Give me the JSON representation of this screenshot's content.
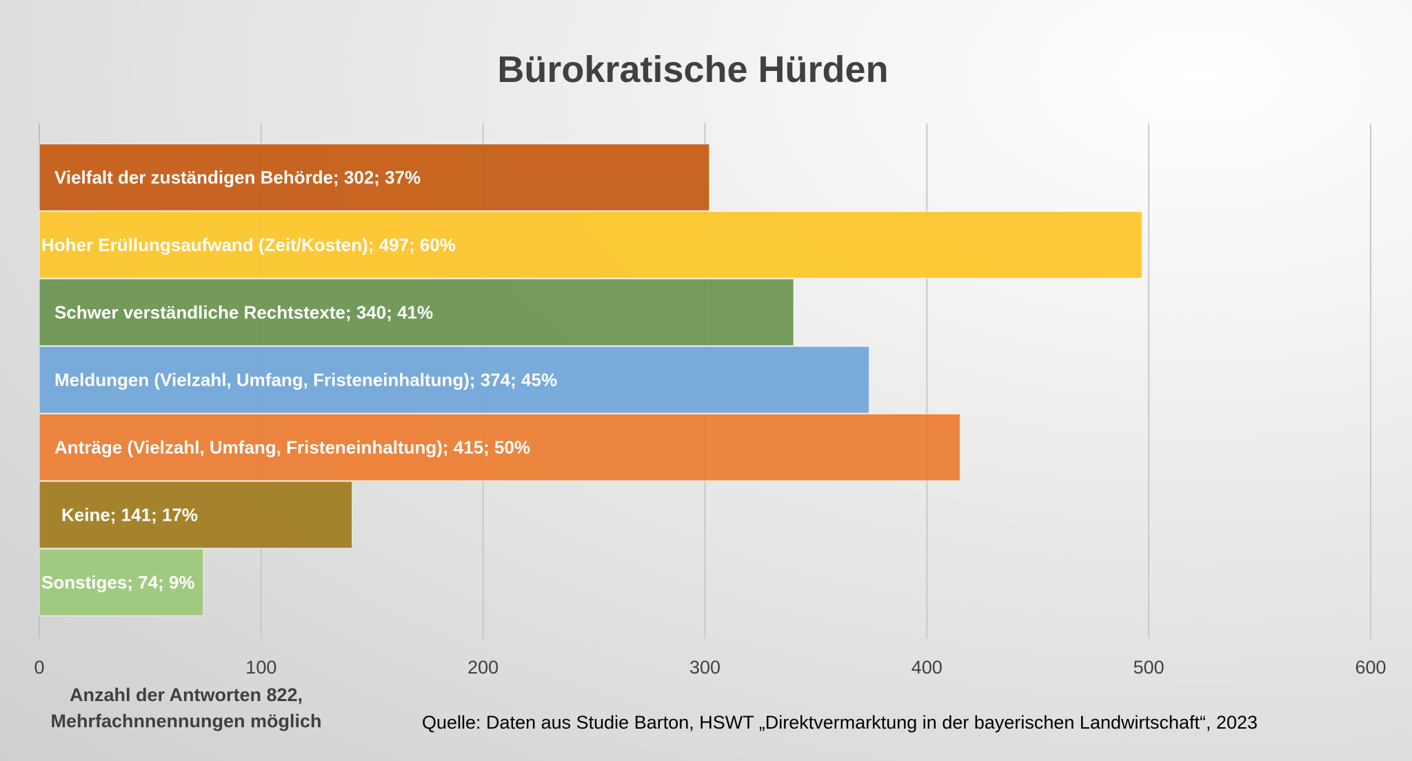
{
  "chart_data": {
    "type": "bar",
    "orientation": "horizontal",
    "title": "Bürokratische Hürden",
    "categories": [
      "Vielfalt der zuständigen Behörde",
      "Hoher Erüllungsaufwand (Zeit/Kosten)",
      "Schwer verständliche Rechtstexte",
      "Meldungen (Vielzahl, Umfang, Fristeneinhaltung)",
      "Anträge (Vielzahl, Umfang, Fristeneinhaltung)",
      "Keine",
      "Sonstiges"
    ],
    "values": [
      302,
      497,
      340,
      374,
      415,
      141,
      74
    ],
    "percents": [
      "37%",
      "60%",
      "41%",
      "45%",
      "50%",
      "17%",
      "9%"
    ],
    "data_labels": [
      "Vielfalt der zuständigen Behörde; 302; 37%",
      "Hoher Erüllungsaufwand (Zeit/Kosten); 497; 60%",
      "Schwer verständliche Rechtstexte; 340; 41%",
      "Meldungen (Vielzahl, Umfang, Fristeneinhaltung); 374; 45%",
      "Anträge (Vielzahl, Umfang, Fristeneinhaltung); 415; 50%",
      "Keine; 141; 17%",
      "Sonstiges; 74; 9%"
    ],
    "colors": [
      "#C55A11",
      "#FEC628",
      "#6A9450",
      "#70A6DA",
      "#ED7D31",
      "#A07C1E",
      "#9DC97A"
    ],
    "xlim": [
      0,
      600
    ],
    "xticks": [
      "0",
      "100",
      "200",
      "300",
      "400",
      "500",
      "600"
    ],
    "xlabel": "Anzahl der Antworten 822, Mehrfachnnennungen möglich",
    "xlabel_lines": [
      "Anzahl der Antworten 822,",
      "Mehrfachnnennungen möglich"
    ],
    "grid": true,
    "legend": "none"
  },
  "source": "Quelle: Daten aus Studie Barton, HSWT „Direktvermarktung in der bayerischen Landwirtschaft“, 2023"
}
